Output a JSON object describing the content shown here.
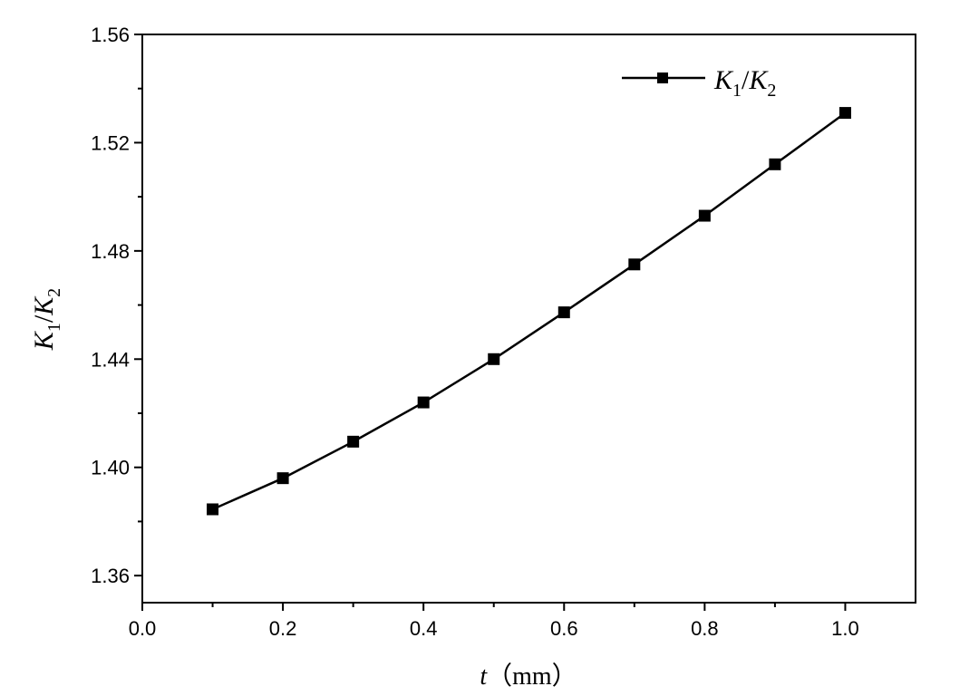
{
  "chart_data": {
    "type": "line",
    "title": "",
    "x": [
      0.1,
      0.2,
      0.3,
      0.4,
      0.5,
      0.6,
      0.7,
      0.8,
      0.9,
      1.0
    ],
    "series": [
      {
        "name": {
          "main": "K",
          "sub1": "1",
          "slash": "/",
          "main2": "K",
          "sub2": "2"
        },
        "values": [
          1.3845,
          1.396,
          1.4095,
          1.424,
          1.44,
          1.4573,
          1.475,
          1.493,
          1.512,
          1.531
        ],
        "color": "#000000",
        "marker": "square"
      }
    ],
    "xlabel": {
      "var": "t",
      "unit": "（mm）"
    },
    "ylabel": {
      "main": "K",
      "sub1": "1",
      "slash": "/",
      "main2": "K",
      "sub2": "2"
    },
    "xlim": [
      0.0,
      1.1
    ],
    "ylim": [
      1.35,
      1.56
    ],
    "xticks": [
      "0.0",
      "0.2",
      "0.4",
      "0.6",
      "0.8",
      "1.0"
    ],
    "yticks": [
      "1.36",
      "1.40",
      "1.44",
      "1.48",
      "1.52",
      "1.56"
    ],
    "grid": false,
    "legend": "top-right"
  }
}
